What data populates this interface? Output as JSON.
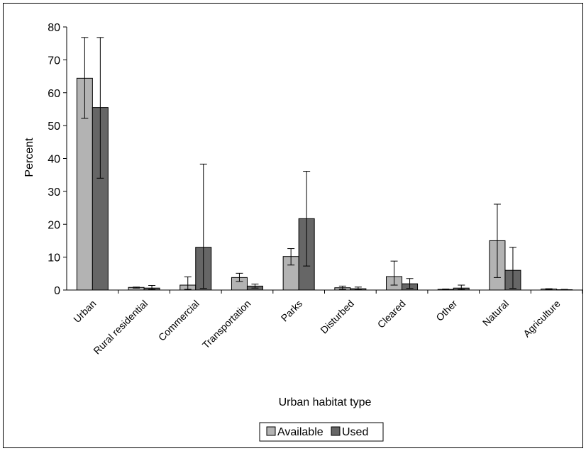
{
  "chart_data": {
    "type": "bar",
    "title": "",
    "xlabel": "Urban habitat type",
    "ylabel": "Percent",
    "ylim": [
      0,
      80
    ],
    "yticks": [
      "0",
      "10",
      "20",
      "30",
      "40",
      "50",
      "60",
      "70",
      "80"
    ],
    "grid": false,
    "legend_position": "bottom",
    "categories": [
      "Urban",
      "Rural residential",
      "Commercial",
      "Transportation",
      "Parks",
      "Disturbed",
      "Cleared",
      "Other",
      "Natural",
      "Agriculture"
    ],
    "series": [
      {
        "name": "Available",
        "color": "#b3b3b3",
        "values": [
          64.4,
          0.8,
          1.5,
          3.8,
          10.2,
          0.7,
          4.1,
          0.2,
          15.0,
          0.3
        ],
        "error_low": [
          52.2,
          0.6,
          0.2,
          2.6,
          7.6,
          0.2,
          1.5,
          0.05,
          3.8,
          0.1
        ],
        "error_high": [
          76.8,
          0.9,
          4.0,
          5.1,
          12.6,
          1.2,
          8.8,
          0.3,
          26.1,
          0.4
        ]
      },
      {
        "name": "Used",
        "color": "#666666",
        "values": [
          55.5,
          0.6,
          13.0,
          1.2,
          21.7,
          0.4,
          1.9,
          0.6,
          6.0,
          0.1
        ],
        "error_low": [
          34.0,
          0.2,
          0.5,
          0.6,
          7.3,
          0.1,
          0.5,
          0.2,
          0.5,
          0.0
        ],
        "error_high": [
          76.8,
          1.4,
          38.3,
          1.8,
          36.1,
          0.9,
          3.5,
          1.5,
          13.0,
          0.2
        ]
      }
    ]
  }
}
